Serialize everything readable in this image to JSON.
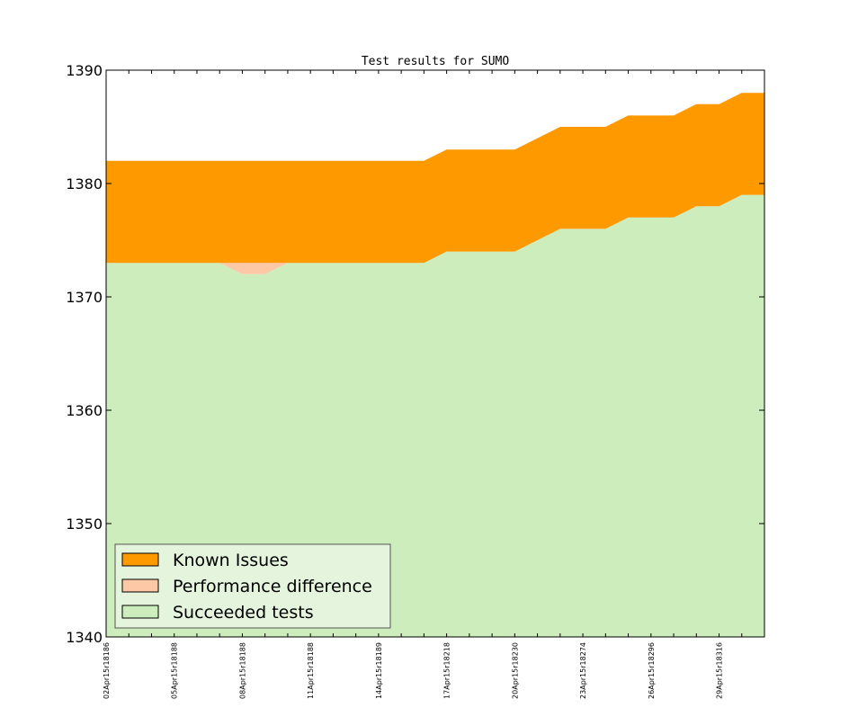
{
  "chart_data": {
    "type": "area",
    "title": "Test results for SUMO",
    "xlabel": "",
    "ylabel": "",
    "ylim": [
      1340,
      1390
    ],
    "yticks": [
      1340,
      1350,
      1360,
      1370,
      1380,
      1390
    ],
    "xlim": [
      0,
      29
    ],
    "x": [
      0,
      1,
      2,
      3,
      4,
      5,
      6,
      7,
      8,
      9,
      10,
      11,
      12,
      13,
      14,
      15,
      16,
      17,
      18,
      19,
      20,
      21,
      22,
      23,
      24,
      25,
      26,
      27,
      28,
      29
    ],
    "xtick_positions": [
      0,
      3,
      6,
      9,
      12,
      15,
      18,
      21,
      24,
      27
    ],
    "xtick_labels": [
      "02Apr15r18186",
      "05Apr15r18188",
      "08Apr15r18188",
      "11Apr15r18188",
      "14Apr15r18189",
      "17Apr15r18218",
      "20Apr15r18230",
      "23Apr15r18274",
      "26Apr15r18296",
      "29Apr15r18316"
    ],
    "series": [
      {
        "name": "Succeeded tests",
        "color": "#cdedbd",
        "values": [
          1373,
          1373,
          1373,
          1373,
          1373,
          1373,
          1372,
          1372,
          1373,
          1373,
          1373,
          1373,
          1373,
          1373,
          1373,
          1374,
          1374,
          1374,
          1374,
          1375,
          1376,
          1376,
          1376,
          1377,
          1377,
          1377,
          1378,
          1378,
          1379,
          1379
        ]
      },
      {
        "name": "Performance difference",
        "color": "#fdc8a6",
        "values": [
          1373,
          1373,
          1373,
          1373,
          1373,
          1373,
          1373,
          1373,
          1373,
          1373,
          1373,
          1373,
          1373,
          1373,
          1373,
          1374,
          1374,
          1374,
          1374,
          1375,
          1376,
          1376,
          1376,
          1377,
          1377,
          1377,
          1378,
          1378,
          1379,
          1379
        ]
      },
      {
        "name": "Known Issues",
        "color": "#fe9900",
        "values": [
          1382,
          1382,
          1382,
          1382,
          1382,
          1382,
          1382,
          1382,
          1382,
          1382,
          1382,
          1382,
          1382,
          1382,
          1382,
          1383,
          1383,
          1383,
          1383,
          1384,
          1385,
          1385,
          1385,
          1386,
          1386,
          1386,
          1387,
          1387,
          1388,
          1388
        ]
      }
    ],
    "legend": {
      "location": "lower-left",
      "entries": [
        {
          "label": "Known Issues",
          "color": "#fe9900"
        },
        {
          "label": "Performance difference",
          "color": "#fdc8a6"
        },
        {
          "label": "Succeeded tests",
          "color": "#cdedbd"
        }
      ]
    }
  }
}
